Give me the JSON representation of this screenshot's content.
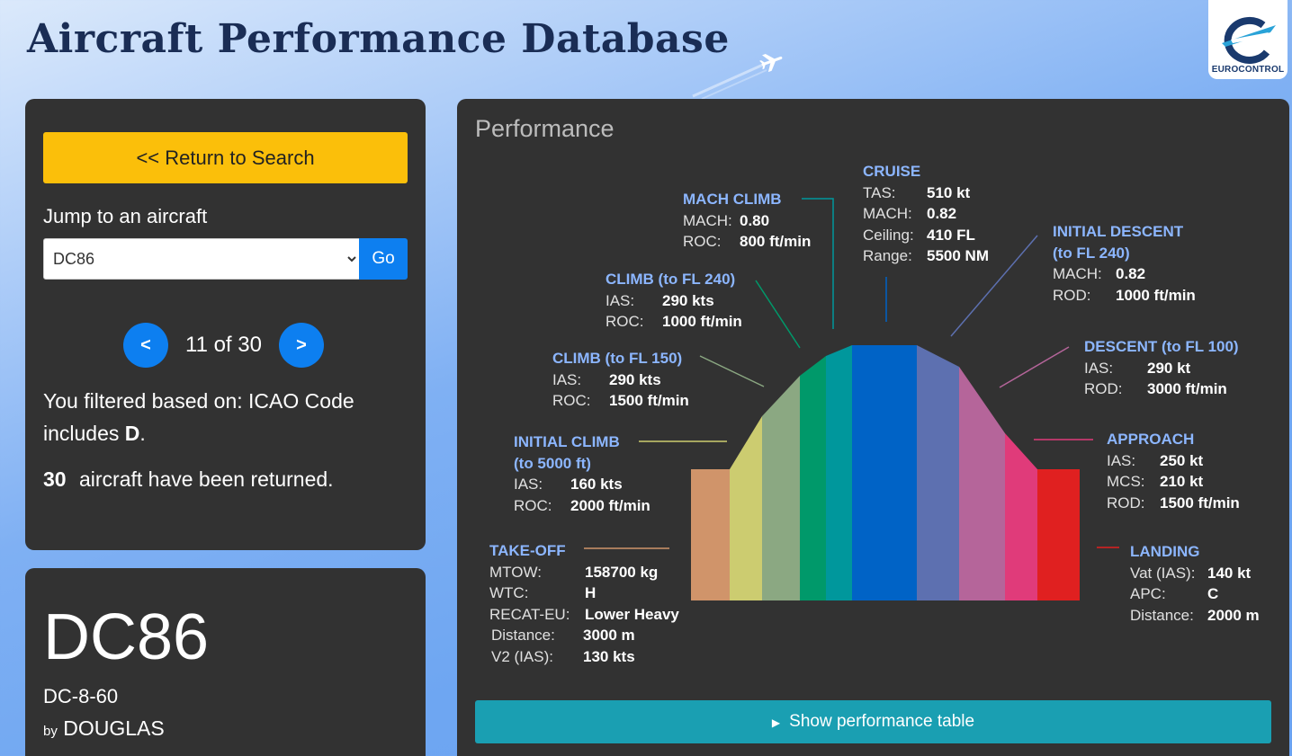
{
  "header": {
    "title": "Aircraft Performance Database",
    "logo_text": "EUROCONTROL"
  },
  "search_panel": {
    "return_label": "<< Return to Search",
    "jump_label": "Jump to an aircraft",
    "selected": "DC86",
    "go_label": "Go",
    "prev_label": "<",
    "next_label": ">",
    "position": "11 of 30",
    "filter_prefix": "You filtered based on: ICAO Code includes ",
    "filter_value": "D",
    "filter_suffix": ".",
    "count": "30",
    "count_suffix": " aircraft have been returned."
  },
  "aircraft": {
    "code": "DC86",
    "model": "DC-8-60",
    "by": "by",
    "manufacturer": "DOUGLAS"
  },
  "performance": {
    "title": "Performance",
    "show_table_label": "Show performance table",
    "phases": {
      "takeoff": {
        "title": "TAKE-OFF",
        "rows": [
          [
            "MTOW:",
            "158700 kg"
          ],
          [
            "WTC:",
            "H"
          ],
          [
            "RECAT-EU:",
            "Lower Heavy"
          ],
          [
            "Distance:",
            "3000 m"
          ],
          [
            "V2 (IAS):",
            "130 kts"
          ]
        ],
        "color": "#d0946a"
      },
      "initial_climb": {
        "title": "INITIAL CLIMB",
        "title2": "(to 5000 ft)",
        "rows": [
          [
            "IAS:",
            "160 kts"
          ],
          [
            "ROC:",
            "2000 ft/min"
          ]
        ],
        "color": "#cccc70"
      },
      "climb_150": {
        "title": "CLIMB (to FL 150)",
        "rows": [
          [
            "IAS:",
            "290 kts"
          ],
          [
            "ROC:",
            "1500 ft/min"
          ]
        ],
        "color": "#8ba882"
      },
      "climb_240": {
        "title": "CLIMB (to FL 240)",
        "rows": [
          [
            "IAS:",
            "290 kts"
          ],
          [
            "ROC:",
            "1000 ft/min"
          ]
        ],
        "color": "#00996a"
      },
      "mach_climb": {
        "title": "MACH CLIMB",
        "rows": [
          [
            "MACH:",
            "0.80"
          ],
          [
            "ROC:",
            "800 ft/min"
          ]
        ],
        "color": "#00979c"
      },
      "cruise": {
        "title": "CRUISE",
        "rows": [
          [
            "TAS:",
            "510 kt"
          ],
          [
            "MACH:",
            "0.82"
          ],
          [
            "Ceiling:",
            "410 FL"
          ],
          [
            "Range:",
            "5500 NM"
          ]
        ],
        "color": "#0063c6"
      },
      "initial_descent": {
        "title": "INITIAL DESCENT",
        "title2": "(to FL 240)",
        "rows": [
          [
            "MACH:",
            "0.82"
          ],
          [
            "ROD:",
            "1000 ft/min"
          ]
        ],
        "color": "#5d70b0"
      },
      "descent_100": {
        "title": "DESCENT (to FL 100)",
        "rows": [
          [
            "IAS:",
            "290 kt"
          ],
          [
            "ROD:",
            "3000 ft/min"
          ]
        ],
        "color": "#b5659a"
      },
      "approach": {
        "title": "APPROACH",
        "rows": [
          [
            "IAS:",
            "250 kt"
          ],
          [
            "MCS:",
            "210 kt"
          ],
          [
            "ROD:",
            "1500 ft/min"
          ]
        ],
        "color": "#e03b7a"
      },
      "landing": {
        "title": "LANDING",
        "rows": [
          [
            "Vat (IAS):",
            "140 kt"
          ],
          [
            "APC:",
            "C"
          ],
          [
            "Distance:",
            "2000 m"
          ]
        ],
        "color": "#e02020"
      }
    }
  }
}
